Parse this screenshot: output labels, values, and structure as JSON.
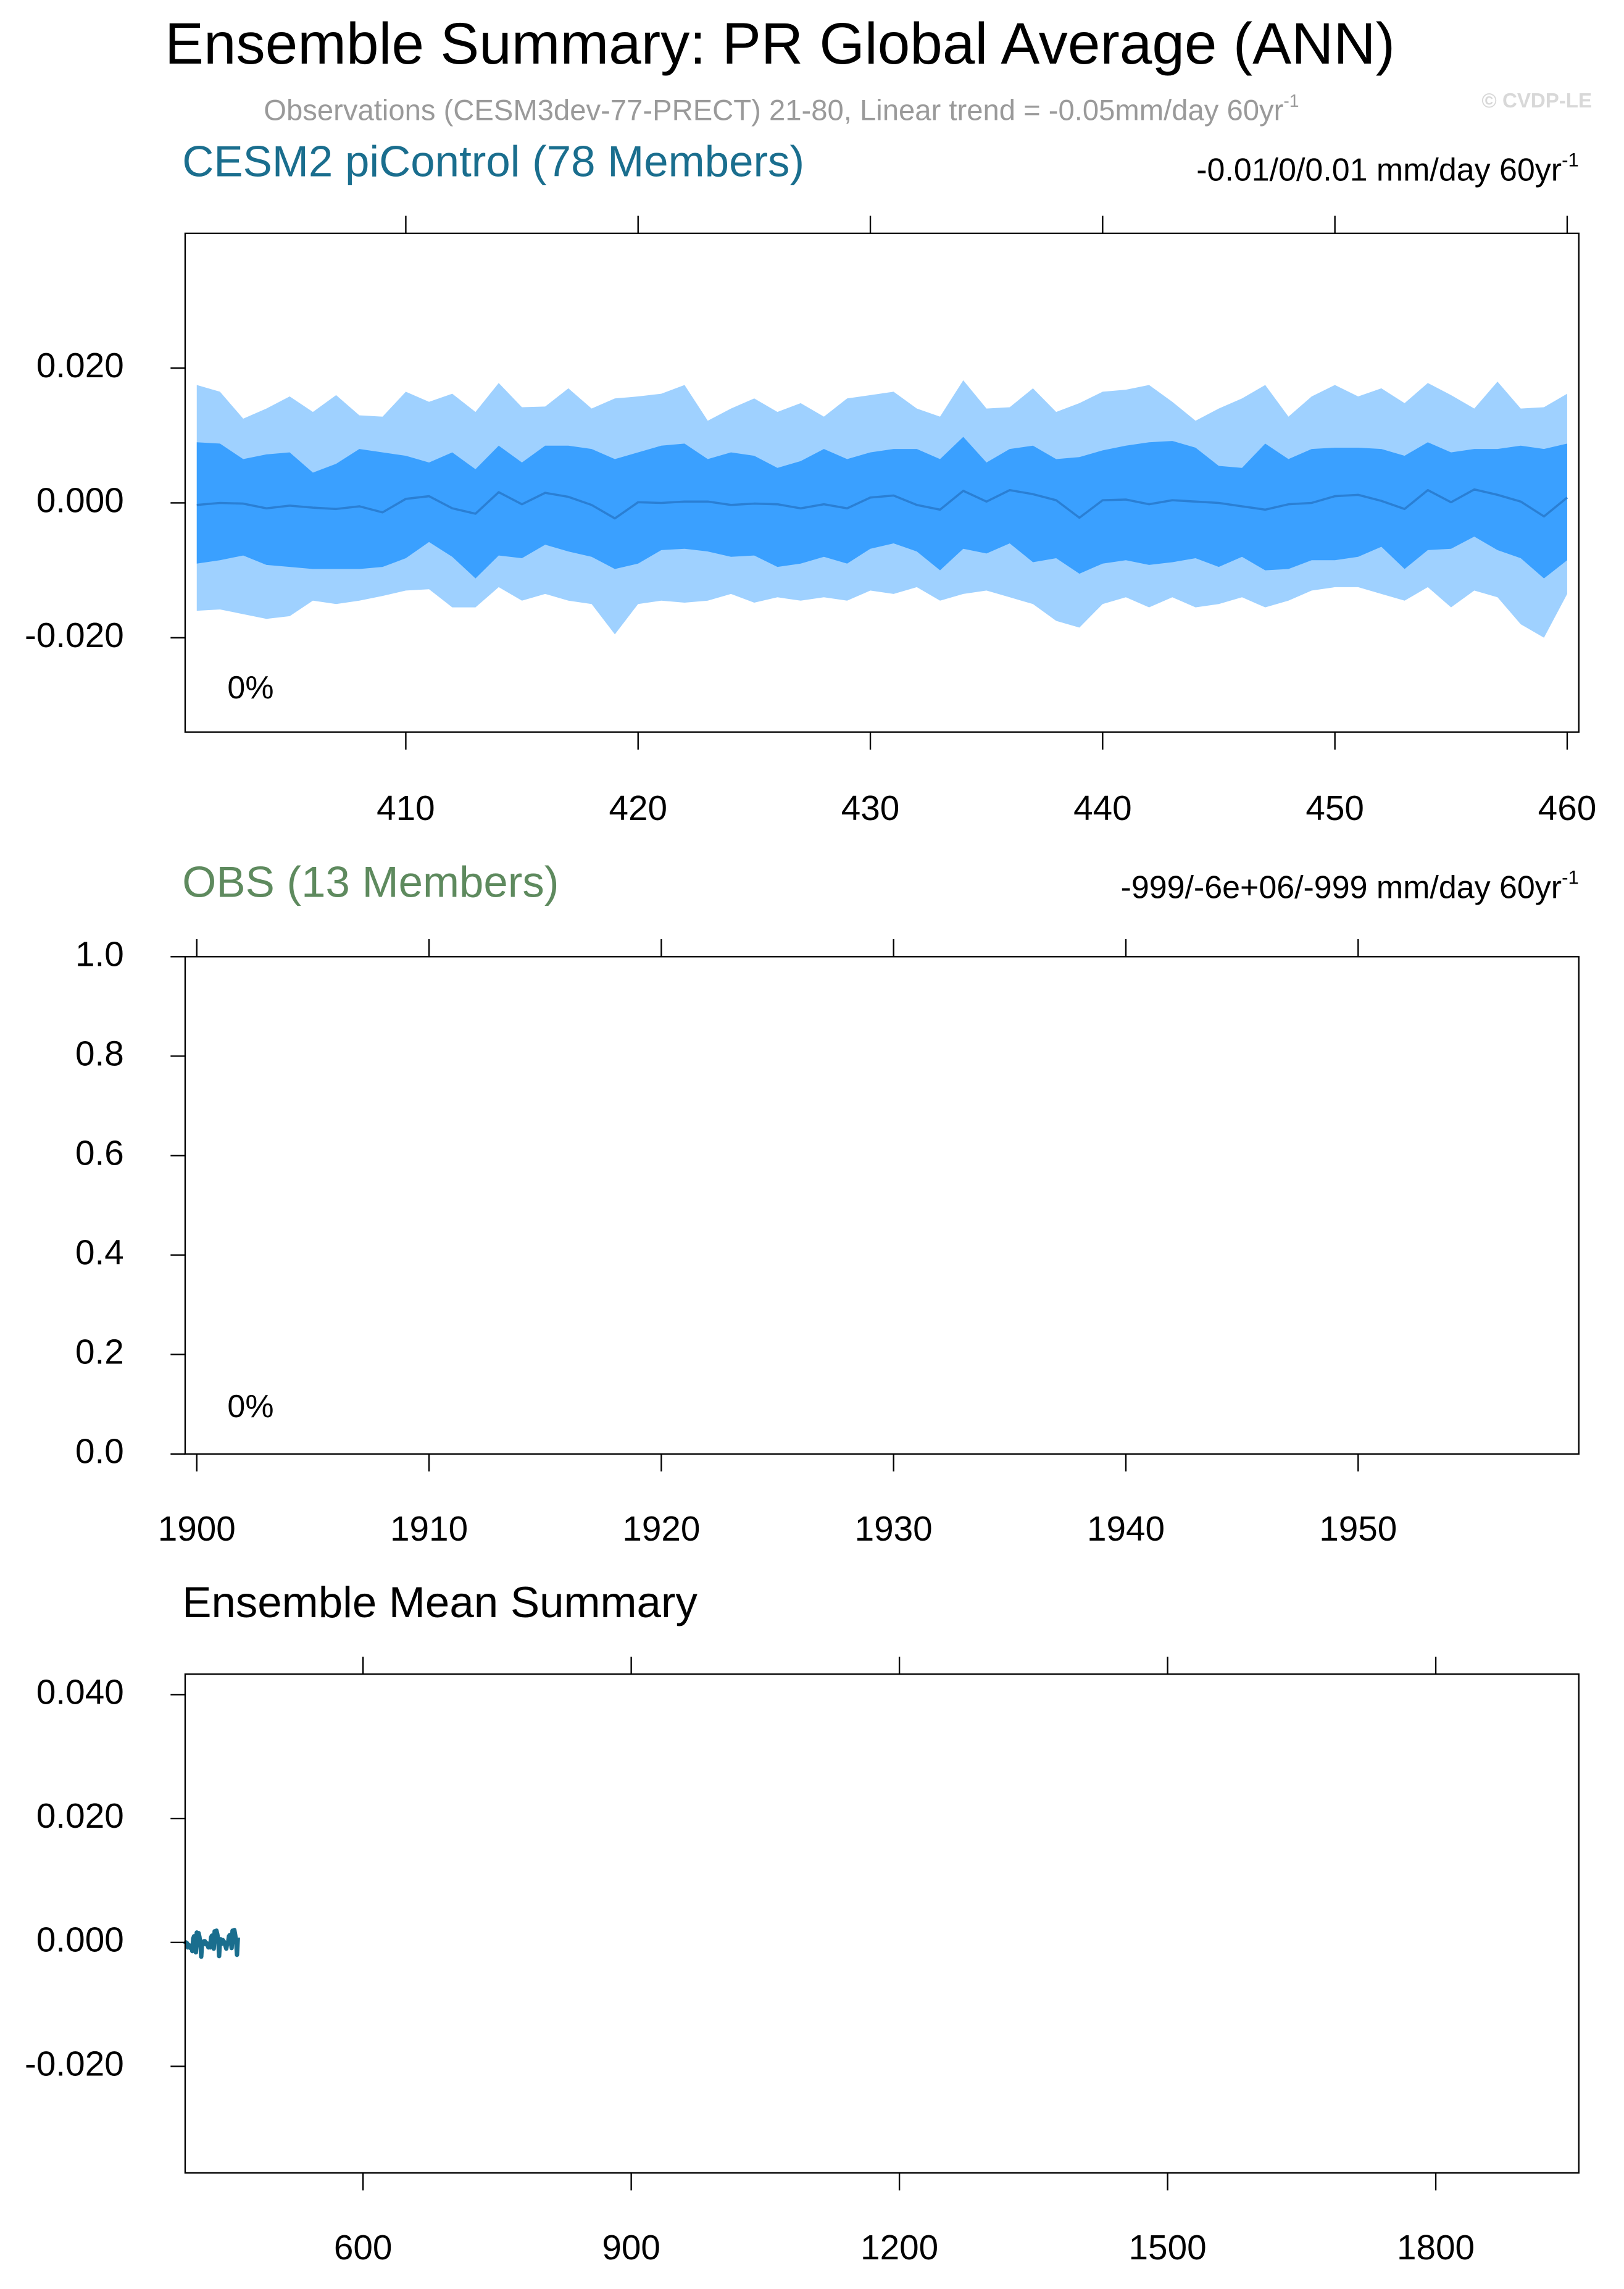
{
  "title": "Ensemble Summary: PR Global Average (ANN)",
  "subtitle": "Observations (CESM3dev-77-PRECT) 21-80, Linear trend = -0.05mm/day 60yr",
  "subtitle_sup": "-1",
  "credit": "© CVDP-LE",
  "chart_data": [
    {
      "type": "band",
      "title": "CESM2 piControl (78 Members)",
      "title_color": "#1a6e8e",
      "trend": "-0.01/0/0.01 mm/day 60yr",
      "trend_sup": "-1",
      "annotation": "0%",
      "xlim": [
        400.5,
        460.5
      ],
      "xticks": [
        410,
        420,
        430,
        440,
        450,
        460
      ],
      "ylim": [
        -0.034,
        0.04
      ],
      "yticks": [
        {
          "value": -0.02,
          "label": "-0.020"
        },
        {
          "value": 0,
          "label": "0.000"
        },
        {
          "value": 0.02,
          "label": "0.020"
        }
      ],
      "x": [
        401,
        402,
        403,
        404,
        405,
        406,
        407,
        408,
        409,
        410,
        411,
        412,
        413,
        414,
        415,
        416,
        417,
        418,
        419,
        420,
        421,
        422,
        423,
        424,
        425,
        426,
        427,
        428,
        429,
        430,
        431,
        432,
        433,
        434,
        435,
        436,
        437,
        438,
        439,
        440,
        441,
        442,
        443,
        444,
        445,
        446,
        447,
        448,
        449,
        450,
        451,
        452,
        453,
        454,
        455,
        456,
        457,
        458,
        459,
        460
      ],
      "bands": [
        {
          "color": "#9fd1ff",
          "upper": [
            0.0175,
            0.0165,
            0.0125,
            0.014,
            0.0158,
            0.0135,
            0.016,
            0.013,
            0.0128,
            0.0165,
            0.015,
            0.0162,
            0.0135,
            0.0178,
            0.0142,
            0.0143,
            0.017,
            0.014,
            0.0155,
            0.0158,
            0.0162,
            0.0175,
            0.0122,
            0.014,
            0.0155,
            0.0135,
            0.0148,
            0.0128,
            0.0155,
            0.016,
            0.0165,
            0.014,
            0.0128,
            0.0182,
            0.014,
            0.0142,
            0.017,
            0.0135,
            0.0148,
            0.0165,
            0.0168,
            0.0175,
            0.015,
            0.0122,
            0.014,
            0.0155,
            0.0175,
            0.0128,
            0.0158,
            0.0175,
            0.0158,
            0.017,
            0.0148,
            0.0178,
            0.016,
            0.014,
            0.018,
            0.014,
            0.0142,
            0.0162
          ],
          "lower": [
            -0.016,
            -0.0158,
            -0.0165,
            -0.0172,
            -0.0168,
            -0.0145,
            -0.015,
            -0.0145,
            -0.0138,
            -0.013,
            -0.0128,
            -0.0155,
            -0.0155,
            -0.0125,
            -0.0145,
            -0.0135,
            -0.0145,
            -0.015,
            -0.0195,
            -0.015,
            -0.0145,
            -0.0148,
            -0.0145,
            -0.0135,
            -0.0148,
            -0.014,
            -0.0145,
            -0.014,
            -0.0145,
            -0.013,
            -0.0135,
            -0.0125,
            -0.0145,
            -0.0135,
            -0.013,
            -0.014,
            -0.015,
            -0.0175,
            -0.0185,
            -0.015,
            -0.014,
            -0.0155,
            -0.014,
            -0.0155,
            -0.015,
            -0.014,
            -0.0155,
            -0.0145,
            -0.013,
            -0.0125,
            -0.0125,
            -0.0135,
            -0.0145,
            -0.0125,
            -0.0155,
            -0.013,
            -0.014,
            -0.018,
            -0.02,
            -0.0135
          ]
        },
        {
          "color": "#3aa0ff",
          "upper": [
            0.009,
            0.0088,
            0.0065,
            0.0072,
            0.0075,
            0.0045,
            0.0058,
            0.008,
            0.0075,
            0.007,
            0.006,
            0.0075,
            0.005,
            0.0085,
            0.006,
            0.0085,
            0.0085,
            0.008,
            0.0065,
            0.0075,
            0.0085,
            0.0088,
            0.0065,
            0.0075,
            0.007,
            0.0052,
            0.0062,
            0.008,
            0.0065,
            0.0075,
            0.008,
            0.008,
            0.0065,
            0.0098,
            0.006,
            0.008,
            0.0085,
            0.0065,
            0.0068,
            0.0078,
            0.0085,
            0.009,
            0.0092,
            0.0082,
            0.0055,
            0.0052,
            0.0088,
            0.0065,
            0.008,
            0.0082,
            0.0082,
            0.008,
            0.007,
            0.009,
            0.0075,
            0.008,
            0.008,
            0.0085,
            0.008,
            0.0088
          ],
          "lower": [
            -0.009,
            -0.0085,
            -0.0078,
            -0.0092,
            -0.0095,
            -0.0098,
            -0.0098,
            -0.0098,
            -0.0095,
            -0.0082,
            -0.0058,
            -0.008,
            -0.0112,
            -0.0078,
            -0.0082,
            -0.0062,
            -0.0072,
            -0.008,
            -0.0098,
            -0.009,
            -0.007,
            -0.0068,
            -0.0072,
            -0.008,
            -0.0078,
            -0.0095,
            -0.009,
            -0.008,
            -0.009,
            -0.0068,
            -0.006,
            -0.0072,
            -0.01,
            -0.0068,
            -0.0075,
            -0.006,
            -0.0088,
            -0.0082,
            -0.0105,
            -0.009,
            -0.0085,
            -0.0092,
            -0.0088,
            -0.0082,
            -0.0095,
            -0.008,
            -0.01,
            -0.0098,
            -0.0085,
            -0.0085,
            -0.008,
            -0.0065,
            -0.0098,
            -0.007,
            -0.0068,
            -0.005,
            -0.007,
            -0.0082,
            -0.0112,
            -0.0085
          ]
        }
      ],
      "series": [
        {
          "color": "#2a7fd4",
          "values": [
            -0.0003,
            0,
            -0.0001,
            -0.0008,
            -0.0004,
            -0.0007,
            -0.0009,
            -0.0005,
            -0.0014,
            0.0006,
            0.001,
            -0.0008,
            -0.0016,
            0.0016,
            -0.0002,
            0.0015,
            0.0009,
            -0.0003,
            -0.0023,
            0.0001,
            0,
            0.0002,
            0.0002,
            -0.0003,
            -0.0001,
            -0.0002,
            -0.0008,
            -0.0002,
            -0.0008,
            0.0008,
            0.0011,
            -0.0003,
            -0.001,
            0.0018,
            0.0002,
            0.0019,
            0.0013,
            0.0004,
            -0.0022,
            0.0004,
            0.0005,
            -0.0002,
            0.0004,
            0.0002,
            0,
            -0.0005,
            -0.001,
            -0.0002,
            0,
            0.001,
            0.0012,
            0.0003,
            -0.0009,
            0.0019,
            0.0001,
            0.002,
            0.0012,
            0.0002,
            -0.002,
            0.0008
          ]
        }
      ]
    },
    {
      "type": "line",
      "title": "OBS (13 Members)",
      "title_color": "#5e8a5e",
      "trend": "-999/-6e+06/-999 mm/day 60yr",
      "trend_sup": "-1",
      "annotation": "0%",
      "xlim": [
        1899.5,
        1959.5
      ],
      "xticks": [
        1900,
        1910,
        1920,
        1930,
        1940,
        1950
      ],
      "ylim": [
        0,
        1
      ],
      "yticks": [
        {
          "value": 0,
          "label": "0.0"
        },
        0.2,
        0.4,
        0.6,
        0.8,
        {
          "value": 1,
          "label": "1.0"
        }
      ]
    },
    {
      "type": "line",
      "title": "Ensemble Mean Summary",
      "title_color": "#000000",
      "xlim": [
        401,
        1960
      ],
      "xticks": [
        600,
        900,
        1200,
        1500,
        1800
      ],
      "ylim": [
        -0.0372,
        0.0433
      ],
      "yticks": [
        {
          "value": -0.02,
          "label": "-0.020"
        },
        {
          "value": 0,
          "label": "0.000"
        },
        {
          "value": 0.02,
          "label": "0.020"
        },
        {
          "value": 0.04,
          "label": "0.040"
        }
      ],
      "x": [
        401,
        402,
        403,
        404,
        405,
        406,
        407,
        408,
        409,
        410,
        411,
        412,
        413,
        414,
        415,
        416,
        417,
        418,
        419,
        420,
        421,
        422,
        423,
        424,
        425,
        426,
        427,
        428,
        429,
        430,
        431,
        432,
        433,
        434,
        435,
        436,
        437,
        438,
        439,
        440,
        441,
        442,
        443,
        444,
        445,
        446,
        447,
        448,
        449,
        450,
        451,
        452,
        453,
        454,
        455,
        456,
        457,
        458,
        459,
        460
      ],
      "series": [
        {
          "color": "#1a6e8e",
          "values": [
            -0.0003,
            0,
            -0.0001,
            -0.0008,
            -0.0004,
            -0.0007,
            -0.0009,
            -0.0005,
            -0.0014,
            0.0006,
            0.001,
            -0.0008,
            -0.0016,
            0.0016,
            -0.0002,
            0.0015,
            0.0009,
            -0.0003,
            -0.0023,
            0.0001,
            0,
            0.0002,
            0.0002,
            -0.0003,
            -0.0001,
            -0.0002,
            -0.0008,
            -0.0002,
            -0.0008,
            0.0008,
            0.0011,
            -0.0003,
            -0.001,
            0.0018,
            0.0002,
            0.0019,
            0.0013,
            0.0004,
            -0.0022,
            0.0004,
            0.0005,
            -0.0002,
            0.0004,
            0.0002,
            0,
            -0.0005,
            -0.001,
            -0.0002,
            0,
            0.001,
            0.0012,
            0.0003,
            -0.0009,
            0.0019,
            0.0001,
            0.002,
            0.0012,
            0.0002,
            -0.002,
            0.0008
          ]
        }
      ]
    }
  ]
}
